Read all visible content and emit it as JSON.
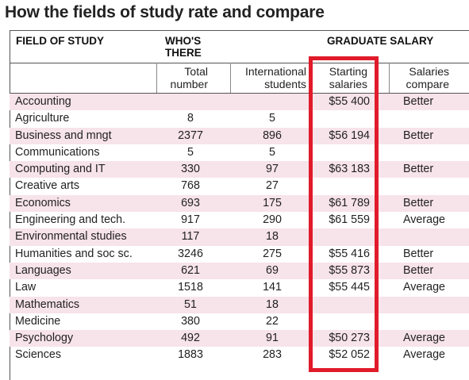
{
  "title": "How the fields of study rate and compare",
  "headers": {
    "field": "FIELD OF STUDY",
    "whos_there": "WHO'S THERE",
    "graduate_salary": "GRADUATE SALARY",
    "total": "Total number",
    "international": "International students",
    "starting": "Starting salaries",
    "compare": "Salaries compare"
  },
  "rows": [
    {
      "field": "Accounting",
      "total": "",
      "intl": "",
      "start": "$55 400",
      "compare": "Better"
    },
    {
      "field": "Agriculture",
      "total": "8",
      "intl": "5",
      "start": "",
      "compare": ""
    },
    {
      "field": "Business and mngt",
      "total": "2377",
      "intl": "896",
      "start": "$56 194",
      "compare": "Better"
    },
    {
      "field": "Communications",
      "total": "5",
      "intl": "5",
      "start": "",
      "compare": ""
    },
    {
      "field": "Computing and IT",
      "total": "330",
      "intl": "97",
      "start": "$63 183",
      "compare": "Better"
    },
    {
      "field": "Creative arts",
      "total": "768",
      "intl": "27",
      "start": "",
      "compare": ""
    },
    {
      "field": "Economics",
      "total": "693",
      "intl": "175",
      "start": "$61 789",
      "compare": "Better"
    },
    {
      "field": "Engineering and tech.",
      "total": "917",
      "intl": "290",
      "start": "$61 559",
      "compare": "Average"
    },
    {
      "field": "Environmental studies",
      "total": "117",
      "intl": "18",
      "start": "",
      "compare": ""
    },
    {
      "field": "Humanities and soc sc.",
      "total": "3246",
      "intl": "275",
      "start": "$55 416",
      "compare": "Better"
    },
    {
      "field": "Languages",
      "total": "621",
      "intl": "69",
      "start": "$55 873",
      "compare": "Better"
    },
    {
      "field": "Law",
      "total": "1518",
      "intl": "141",
      "start": "$55 445",
      "compare": "Average"
    },
    {
      "field": "Mathematics",
      "total": "51",
      "intl": "18",
      "start": "",
      "compare": ""
    },
    {
      "field": "Medicine",
      "total": "380",
      "intl": "22",
      "start": "",
      "compare": ""
    },
    {
      "field": "Psychology",
      "total": "492",
      "intl": "91",
      "start": "$50 273",
      "compare": "Average"
    },
    {
      "field": "Sciences",
      "total": "1883",
      "intl": "283",
      "start": "$52 052",
      "compare": "Average"
    }
  ],
  "colors": {
    "highlight": "#e01b2a",
    "row_shade": "#f7e3ea"
  }
}
